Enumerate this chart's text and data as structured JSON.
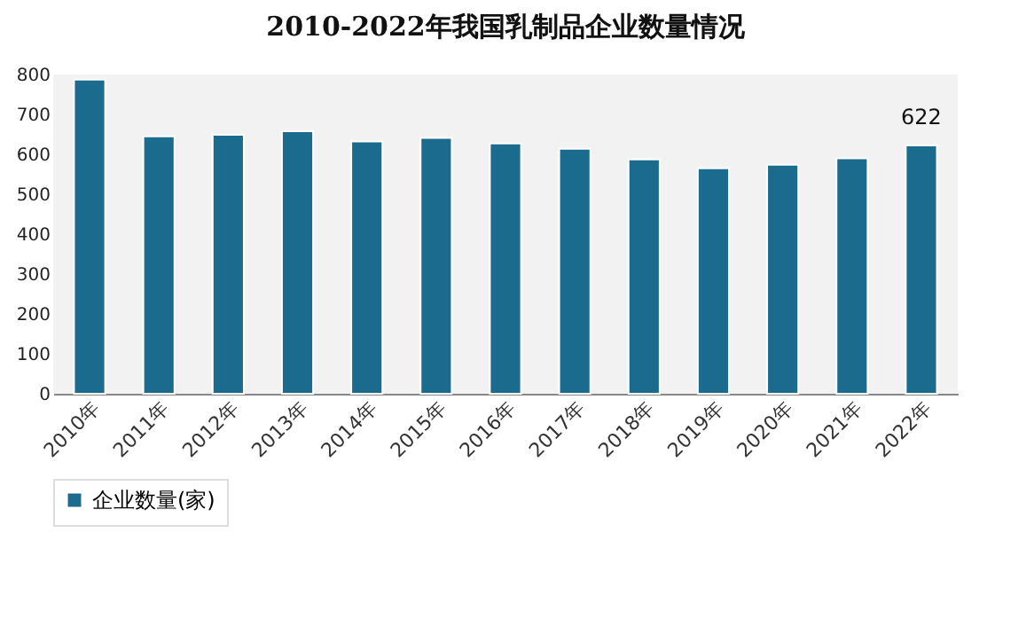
{
  "chart_data": {
    "type": "bar",
    "title": "2010-2022年我国乳制品企业数量情况",
    "categories": [
      "2010年",
      "2011年",
      "2012年",
      "2013年",
      "2014年",
      "2015年",
      "2016年",
      "2017年",
      "2018年",
      "2019年",
      "2020年",
      "2021年",
      "2022年"
    ],
    "series": [
      {
        "name": "企业数量(家)",
        "color": "#1b6b8e",
        "values": [
          787,
          645,
          649,
          658,
          632,
          641,
          627,
          614,
          587,
          565,
          574,
          590,
          622
        ],
        "value_labels": [
          null,
          null,
          null,
          null,
          null,
          null,
          null,
          null,
          null,
          null,
          null,
          null,
          "622"
        ]
      }
    ],
    "ylim": [
      0,
      800
    ],
    "yticks": [
      0,
      100,
      200,
      300,
      400,
      500,
      600,
      700,
      800
    ],
    "grid": false,
    "legend": "bottom"
  }
}
